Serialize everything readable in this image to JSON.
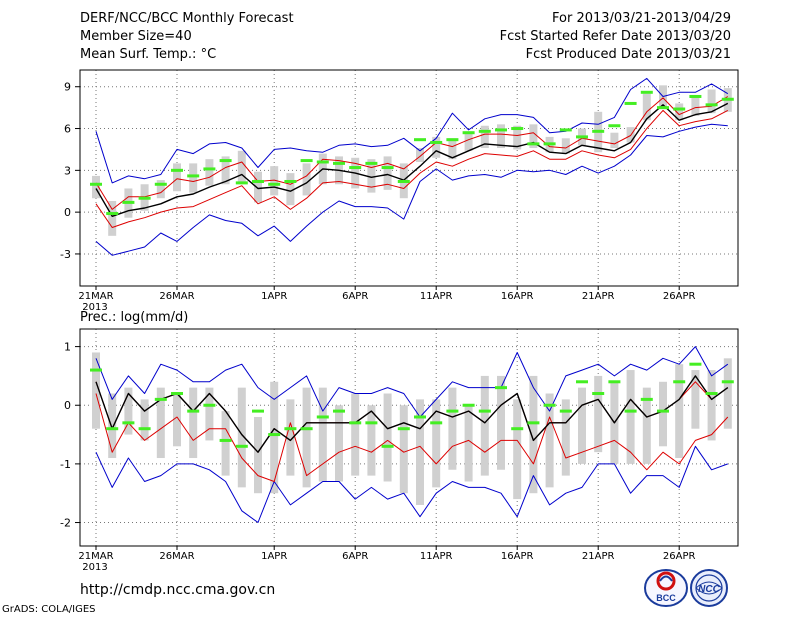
{
  "header": {
    "title": "DERF/NCC/BCC Monthly Forecast",
    "member_size": "Member Size=40",
    "variable": "Mean Surf. Temp.: °C",
    "forecast_period": "For 2013/03/21-2013/04/29",
    "start_date": "Fcst Started Refer Date 2013/03/20",
    "produced_date": "Fcst Produced Date 2013/03/21"
  },
  "footer": {
    "url": "http://cmdp.ncc.cma.gov.cn",
    "grads_credit": "GrADS: COLA/IGES",
    "logo_bcc_text": "BCC",
    "logo_ncc_text": "NCC"
  },
  "colors": {
    "envelope": "#0000cc",
    "percentile": "#dd0000",
    "ensemble_mean": "#000000",
    "median_tick": "#44ee22",
    "spread_bar": "#d0d0d0",
    "grid": "#777777"
  },
  "chart_data": [
    {
      "type": "line",
      "title": "Mean Surf. Temp.: °C",
      "x_labels": [
        "21MAR",
        "26MAR",
        "1APR",
        "6APR",
        "11APR",
        "16APR",
        "21APR",
        "26APR"
      ],
      "x_label_days": [
        0,
        5,
        11,
        16,
        21,
        26,
        31,
        36
      ],
      "year_label": "2013",
      "yticks": [
        -3,
        0,
        3,
        6,
        9
      ],
      "ylim": [
        -5.3,
        10.2
      ],
      "ndays": 40,
      "series": [
        {
          "name": "max",
          "values": [
            5.8,
            2.1,
            2.6,
            2.4,
            2.7,
            4.5,
            4.2,
            4.9,
            5.0,
            4.6,
            3.2,
            4.5,
            4.6,
            4.4,
            4.3,
            4.8,
            4.9,
            4.7,
            4.8,
            5.3,
            4.4,
            5.3,
            7.1,
            5.9,
            6.7,
            7.0,
            7.0,
            6.8,
            5.7,
            5.8,
            6.4,
            6.3,
            6.8,
            8.8,
            9.6,
            8.3,
            8.6,
            8.6,
            9.2,
            8.5
          ]
        },
        {
          "name": "p75",
          "values": [
            2.1,
            0.2,
            1.1,
            1.1,
            1.4,
            2.4,
            2.2,
            2.5,
            3.2,
            3.6,
            2.2,
            2.3,
            2.0,
            2.6,
            3.8,
            3.7,
            3.5,
            3.2,
            3.5,
            3.1,
            4.0,
            5.0,
            4.7,
            5.2,
            5.6,
            5.6,
            5.5,
            5.7,
            4.7,
            4.6,
            5.3,
            5.1,
            4.9,
            5.5,
            7.2,
            8.2,
            7.0,
            7.5,
            7.6,
            8.3
          ]
        },
        {
          "name": "mean",
          "values": [
            1.7,
            -0.3,
            0.1,
            0.3,
            0.6,
            1.1,
            1.3,
            1.8,
            2.2,
            2.7,
            1.7,
            1.8,
            1.5,
            2.1,
            3.1,
            3.0,
            2.8,
            2.5,
            2.7,
            2.3,
            3.3,
            4.4,
            3.9,
            4.4,
            4.9,
            4.8,
            4.7,
            5.0,
            4.3,
            4.2,
            4.8,
            4.6,
            4.4,
            5.0,
            6.7,
            7.7,
            6.6,
            7.0,
            7.2,
            7.8
          ]
        },
        {
          "name": "p25",
          "values": [
            0.6,
            -1.1,
            -0.7,
            -0.4,
            0.0,
            0.3,
            0.4,
            0.9,
            1.4,
            1.9,
            0.6,
            1.1,
            0.2,
            1.0,
            2.1,
            2.2,
            2.0,
            1.8,
            2.0,
            1.7,
            2.8,
            3.6,
            3.3,
            3.8,
            4.2,
            4.1,
            4.0,
            4.4,
            3.8,
            3.8,
            4.4,
            4.1,
            3.9,
            4.5,
            6.0,
            7.3,
            6.2,
            6.5,
            6.7,
            7.3
          ]
        },
        {
          "name": "min",
          "values": [
            -2.1,
            -3.1,
            -2.8,
            -2.5,
            -1.5,
            -2.1,
            -1.1,
            -0.2,
            -0.6,
            -0.8,
            -1.7,
            -1.0,
            -2.1,
            -1.0,
            0.0,
            0.8,
            0.4,
            0.4,
            0.3,
            -0.5,
            2.2,
            3.1,
            2.3,
            2.6,
            2.7,
            2.5,
            3.0,
            2.9,
            3.0,
            2.7,
            3.3,
            2.8,
            3.3,
            4.1,
            5.5,
            5.4,
            5.8,
            6.1,
            6.3,
            6.2
          ]
        },
        {
          "name": "bar_top",
          "values": [
            2.6,
            0.8,
            1.7,
            2.0,
            2.3,
            3.5,
            3.5,
            3.8,
            4.0,
            4.4,
            2.9,
            3.3,
            2.8,
            3.5,
            4.2,
            4.0,
            3.9,
            3.8,
            4.0,
            3.5,
            4.6,
            5.4,
            5.3,
            5.8,
            6.2,
            6.3,
            6.2,
            6.3,
            5.4,
            5.3,
            6.0,
            7.2,
            5.7,
            6.1,
            8.5,
            9.1,
            7.8,
            8.2,
            8.8,
            8.9
          ]
        },
        {
          "name": "bar_bottom",
          "values": [
            1.0,
            -1.7,
            -0.4,
            0.1,
            1.0,
            1.5,
            1.4,
            1.9,
            2.0,
            2.2,
            0.7,
            1.2,
            0.5,
            1.2,
            2.0,
            2.0,
            1.7,
            1.4,
            1.6,
            1.0,
            3.6,
            3.9,
            3.8,
            4.4,
            4.6,
            4.6,
            4.5,
            4.6,
            4.3,
            4.2,
            4.8,
            4.3,
            4.6,
            5.0,
            6.6,
            7.4,
            6.6,
            6.9,
            7.1,
            7.2
          ]
        },
        {
          "name": "median",
          "values": [
            2.0,
            -0.1,
            0.7,
            1.0,
            2.0,
            3.0,
            2.6,
            3.1,
            3.7,
            2.1,
            2.2,
            2.0,
            2.2,
            3.7,
            3.6,
            3.5,
            3.2,
            3.5,
            3.2,
            2.2,
            5.2,
            5.0,
            5.2,
            5.7,
            5.8,
            5.9,
            6.0,
            4.9,
            4.9,
            5.9,
            5.4,
            5.8,
            6.2,
            7.8,
            8.6,
            7.5,
            7.4,
            8.3,
            7.7,
            8.1
          ]
        }
      ]
    },
    {
      "type": "line",
      "title": "Prec.: log(mm/d)",
      "x_labels": [
        "21MAR",
        "26MAR",
        "1APR",
        "6APR",
        "11APR",
        "16APR",
        "21APR",
        "26APR"
      ],
      "x_label_days": [
        0,
        5,
        11,
        16,
        21,
        26,
        31,
        36
      ],
      "year_label": "2013",
      "yticks": [
        -2,
        -1,
        0,
        1
      ],
      "ylim": [
        -2.4,
        1.3
      ],
      "ndays": 40,
      "series": [
        {
          "name": "max",
          "values": [
            0.8,
            0.1,
            0.5,
            0.2,
            0.7,
            0.6,
            0.4,
            0.4,
            0.6,
            0.7,
            0.3,
            0.1,
            0.3,
            0.5,
            -0.1,
            0.3,
            0.2,
            0.2,
            0.3,
            0.2,
            -0.2,
            0.1,
            0.4,
            0.3,
            0.3,
            0.3,
            0.9,
            0.3,
            -0.1,
            0.5,
            0.6,
            0.7,
            0.5,
            0.7,
            0.6,
            0.8,
            0.7,
            1.0,
            0.5,
            0.7
          ]
        },
        {
          "name": "p25",
          "values": [
            0.2,
            -0.8,
            -0.3,
            -0.6,
            -0.4,
            -0.2,
            -0.6,
            -0.4,
            -0.4,
            -0.9,
            -1.2,
            -1.3,
            -0.3,
            -1.2,
            -1.0,
            -0.8,
            -0.7,
            -0.8,
            -0.6,
            -0.8,
            -0.7,
            -1.0,
            -0.7,
            -0.6,
            -0.8,
            -0.6,
            -0.6,
            -1.0,
            -0.2,
            -0.9,
            -0.8,
            -0.7,
            -0.6,
            -0.8,
            -1.1,
            -0.8,
            -1.0,
            -0.6,
            -0.5,
            -0.2
          ]
        },
        {
          "name": "p75",
          "values": [
            0.4,
            -0.4,
            0.2,
            -0.1,
            0.1,
            0.2,
            -0.1,
            0.2,
            -0.1,
            -0.5,
            -0.8,
            -0.4,
            -0.6,
            -0.3,
            -0.3,
            -0.3,
            -0.3,
            -0.1,
            -0.4,
            -0.3,
            -0.4,
            -0.1,
            -0.2,
            -0.1,
            -0.3,
            0.0,
            0.2,
            -0.6,
            -0.3,
            -0.3,
            0.0,
            0.1,
            -0.3,
            0.1,
            -0.2,
            -0.1,
            0.1,
            0.4,
            0.1,
            0.3
          ]
        },
        {
          "name": "mean",
          "values": [
            0.4,
            -0.4,
            0.2,
            -0.1,
            0.1,
            0.2,
            -0.1,
            0.2,
            -0.1,
            -0.5,
            -0.8,
            -0.4,
            -0.6,
            -0.3,
            -0.3,
            -0.3,
            -0.3,
            -0.1,
            -0.4,
            -0.3,
            -0.4,
            -0.1,
            -0.2,
            -0.1,
            -0.3,
            0.0,
            0.2,
            -0.6,
            -0.3,
            -0.3,
            0.0,
            0.1,
            -0.3,
            0.1,
            -0.2,
            -0.1,
            0.1,
            0.5,
            0.1,
            0.3
          ]
        },
        {
          "name": "min",
          "values": [
            -0.8,
            -1.4,
            -0.9,
            -1.3,
            -1.2,
            -1.0,
            -1.0,
            -1.1,
            -1.3,
            -1.8,
            -2.0,
            -1.3,
            -1.7,
            -1.5,
            -1.3,
            -1.3,
            -1.6,
            -1.4,
            -1.6,
            -1.5,
            -1.9,
            -1.5,
            -1.3,
            -1.4,
            -1.4,
            -1.5,
            -1.9,
            -1.2,
            -1.7,
            -1.5,
            -1.4,
            -1.0,
            -1.0,
            -1.5,
            -1.2,
            -1.2,
            -1.4,
            -0.7,
            -1.1,
            -1.0
          ]
        },
        {
          "name": "bar_top",
          "values": [
            0.9,
            0.2,
            0.3,
            0.1,
            0.3,
            0.2,
            0.3,
            0.3,
            -0.1,
            0.3,
            -0.2,
            0.4,
            0.1,
            0.3,
            0.3,
            0.0,
            0.2,
            0.0,
            0.2,
            0.0,
            0.1,
            0.1,
            0.3,
            0.0,
            0.5,
            0.5,
            0.1,
            0.5,
            0.2,
            0.1,
            0.3,
            0.5,
            0.4,
            0.6,
            0.3,
            0.4,
            0.7,
            0.6,
            0.6,
            0.8
          ]
        },
        {
          "name": "bar_bottom",
          "values": [
            -0.4,
            -0.9,
            -0.5,
            -0.6,
            -0.9,
            -0.7,
            -0.9,
            -0.6,
            -1.2,
            -1.4,
            -1.5,
            -1.5,
            -1.2,
            -1.4,
            -1.3,
            -1.3,
            -1.2,
            -1.2,
            -1.3,
            -1.5,
            -1.7,
            -1.4,
            -1.1,
            -1.3,
            -1.2,
            -1.1,
            -1.6,
            -1.5,
            -1.4,
            -1.2,
            -1.0,
            -0.8,
            -1.0,
            -1.0,
            -1.0,
            -0.7,
            -0.9,
            -0.4,
            -0.6,
            -0.4
          ]
        },
        {
          "name": "median",
          "values": [
            0.6,
            -0.4,
            -0.3,
            -0.4,
            0.1,
            0.2,
            -0.1,
            0.0,
            -0.6,
            -0.7,
            -0.1,
            -0.5,
            -0.4,
            -0.4,
            -0.2,
            -0.1,
            -0.3,
            -0.3,
            -0.7,
            -0.4,
            -0.2,
            -0.3,
            -0.1,
            0.0,
            -0.1,
            0.3,
            -0.4,
            -0.3,
            0.0,
            -0.1,
            0.4,
            0.2,
            0.4,
            -0.1,
            0.1,
            -0.1,
            0.4,
            0.7,
            0.2,
            0.4
          ]
        }
      ]
    }
  ]
}
